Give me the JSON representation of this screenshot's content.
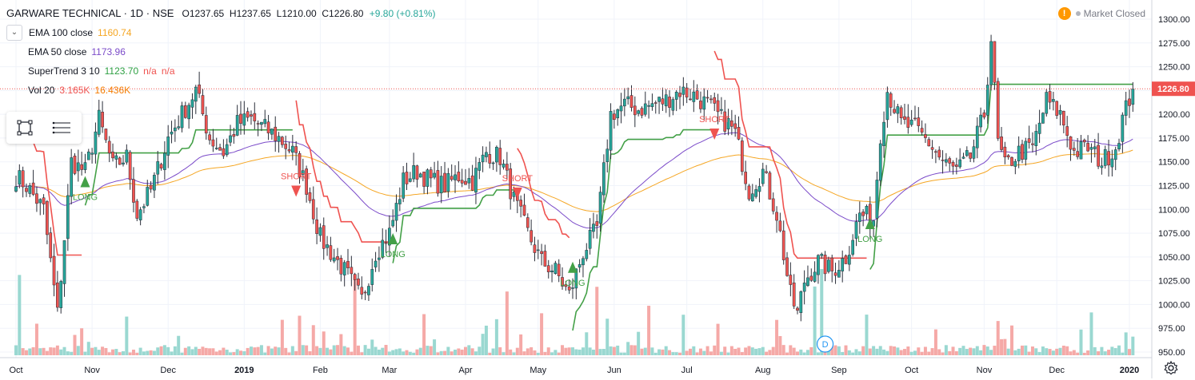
{
  "header": {
    "symbol": "GARWARE TECHNICAL · 1D · NSE",
    "o_label": "O",
    "o": "1237.65",
    "h_label": "H",
    "h": "1237.65",
    "l_label": "L",
    "l": "1210.00",
    "c_label": "C",
    "c": "1226.80",
    "change": "+9.80 (+0.81%)",
    "market_status": "Market Closed"
  },
  "indicators": [
    {
      "name": "EMA 100 close",
      "value": "1160.74",
      "color": "#f5a623"
    },
    {
      "name": "EMA 50 close",
      "value": "1173.96",
      "color": "#7b4bc9"
    },
    {
      "name": "SuperTrend 3 10",
      "value": "1123.70",
      "extra": "n/a",
      "extra2": "n/a",
      "color": "#2ea043",
      "extra_color": "#ef5350"
    },
    {
      "name": "Vol 20",
      "value": "3.165K",
      "extra": "16.436K",
      "color": "#ef5350",
      "extra_color": "#f57c00"
    }
  ],
  "icons": [
    "chevron-down-icon",
    "rectangle-select-icon",
    "list-icon",
    "warning-icon",
    "gear-icon"
  ],
  "colors": {
    "up": "#26a69a",
    "down": "#ef5350",
    "ema100": "#f5a623",
    "ema50": "#7b4bc9",
    "st_up": "#43a047",
    "st_down": "#ef5350",
    "last_price": "#ef5350"
  },
  "chart_data": {
    "type": "candlestick",
    "y_axis": {
      "range": [
        945,
        1305
      ],
      "ticks": [
        950,
        975,
        1000,
        1025,
        1050,
        1075,
        1100,
        1125,
        1150,
        1175,
        1200,
        1225,
        1250,
        1275,
        1300
      ],
      "tick_labels": [
        "950.00",
        "975.00",
        "1000.00",
        "1025.00",
        "1050.00",
        "1075.00",
        "1100.00",
        "1125.00",
        "1150.00",
        "1175.00",
        "1200.00",
        "1225.00",
        "1250.00",
        "1275.00",
        "1300.00"
      ]
    },
    "x_axis": {
      "labels": [
        "Oct",
        "Nov",
        "Dec",
        "2019",
        "Feb",
        "Mar",
        "Apr",
        "May",
        "Jun",
        "Jul",
        "Aug",
        "Sep",
        "Oct",
        "Nov",
        "Dec",
        "2020"
      ],
      "label_index": [
        0,
        22,
        44,
        66,
        88,
        108,
        130,
        151,
        173,
        194,
        216,
        238,
        259,
        280,
        301,
        322
      ]
    },
    "last_price_label": "1226.80",
    "last_price": 1226.8,
    "close_anchors": [
      [
        0,
        1135
      ],
      [
        3,
        1125
      ],
      [
        8,
        1100
      ],
      [
        12,
        990
      ],
      [
        16,
        1150
      ],
      [
        20,
        1140
      ],
      [
        24,
        1195
      ],
      [
        28,
        1145
      ],
      [
        32,
        1155
      ],
      [
        35,
        1095
      ],
      [
        39,
        1120
      ],
      [
        44,
        1175
      ],
      [
        48,
        1200
      ],
      [
        52,
        1225
      ],
      [
        56,
        1175
      ],
      [
        60,
        1160
      ],
      [
        64,
        1190
      ],
      [
        68,
        1195
      ],
      [
        72,
        1185
      ],
      [
        76,
        1175
      ],
      [
        80,
        1160
      ],
      [
        84,
        1125
      ],
      [
        88,
        1070
      ],
      [
        92,
        1050
      ],
      [
        96,
        1030
      ],
      [
        100,
        1005
      ],
      [
        104,
        1055
      ],
      [
        108,
        1075
      ],
      [
        112,
        1130
      ],
      [
        116,
        1140
      ],
      [
        120,
        1130
      ],
      [
        124,
        1125
      ],
      [
        128,
        1135
      ],
      [
        132,
        1130
      ],
      [
        136,
        1160
      ],
      [
        140,
        1155
      ],
      [
        144,
        1110
      ],
      [
        148,
        1075
      ],
      [
        152,
        1045
      ],
      [
        156,
        1035
      ],
      [
        160,
        1010
      ],
      [
        164,
        1055
      ],
      [
        168,
        1080
      ],
      [
        170,
        1140
      ],
      [
        172,
        1200
      ],
      [
        176,
        1210
      ],
      [
        180,
        1205
      ],
      [
        184,
        1210
      ],
      [
        188,
        1215
      ],
      [
        192,
        1225
      ],
      [
        196,
        1220
      ],
      [
        200,
        1210
      ],
      [
        204,
        1195
      ],
      [
        206,
        1190
      ],
      [
        208,
        1180
      ],
      [
        212,
        1120
      ],
      [
        216,
        1140
      ],
      [
        220,
        1095
      ],
      [
        224,
        1010
      ],
      [
        226,
        990
      ],
      [
        228,
        1025
      ],
      [
        232,
        1045
      ],
      [
        236,
        1035
      ],
      [
        240,
        1050
      ],
      [
        244,
        1095
      ],
      [
        248,
        1090
      ],
      [
        250,
        1180
      ],
      [
        252,
        1225
      ],
      [
        256,
        1190
      ],
      [
        260,
        1185
      ],
      [
        264,
        1170
      ],
      [
        268,
        1150
      ],
      [
        272,
        1140
      ],
      [
        276,
        1155
      ],
      [
        280,
        1200
      ],
      [
        282,
        1280
      ],
      [
        284,
        1170
      ],
      [
        286,
        1145
      ],
      [
        290,
        1160
      ],
      [
        294,
        1165
      ],
      [
        298,
        1215
      ],
      [
        302,
        1200
      ],
      [
        306,
        1160
      ],
      [
        310,
        1165
      ],
      [
        314,
        1150
      ],
      [
        318,
        1165
      ],
      [
        320,
        1195
      ],
      [
        323,
        1226.8
      ]
    ],
    "supertrend_markers": [
      {
        "type": "LONG",
        "index": 20,
        "price": 1130
      },
      {
        "type": "SHORT",
        "index": 81,
        "price": 1120
      },
      {
        "type": "LONG",
        "index": 109,
        "price": 1070
      },
      {
        "type": "SHORT",
        "index": 145,
        "price": 1118
      },
      {
        "type": "LONG",
        "index": 161,
        "price": 1040
      },
      {
        "type": "SHORT",
        "index": 202,
        "price": 1180
      },
      {
        "type": "LONG",
        "index": 247,
        "price": 1086
      }
    ],
    "event_badge": {
      "label": "D",
      "index": 234
    }
  }
}
